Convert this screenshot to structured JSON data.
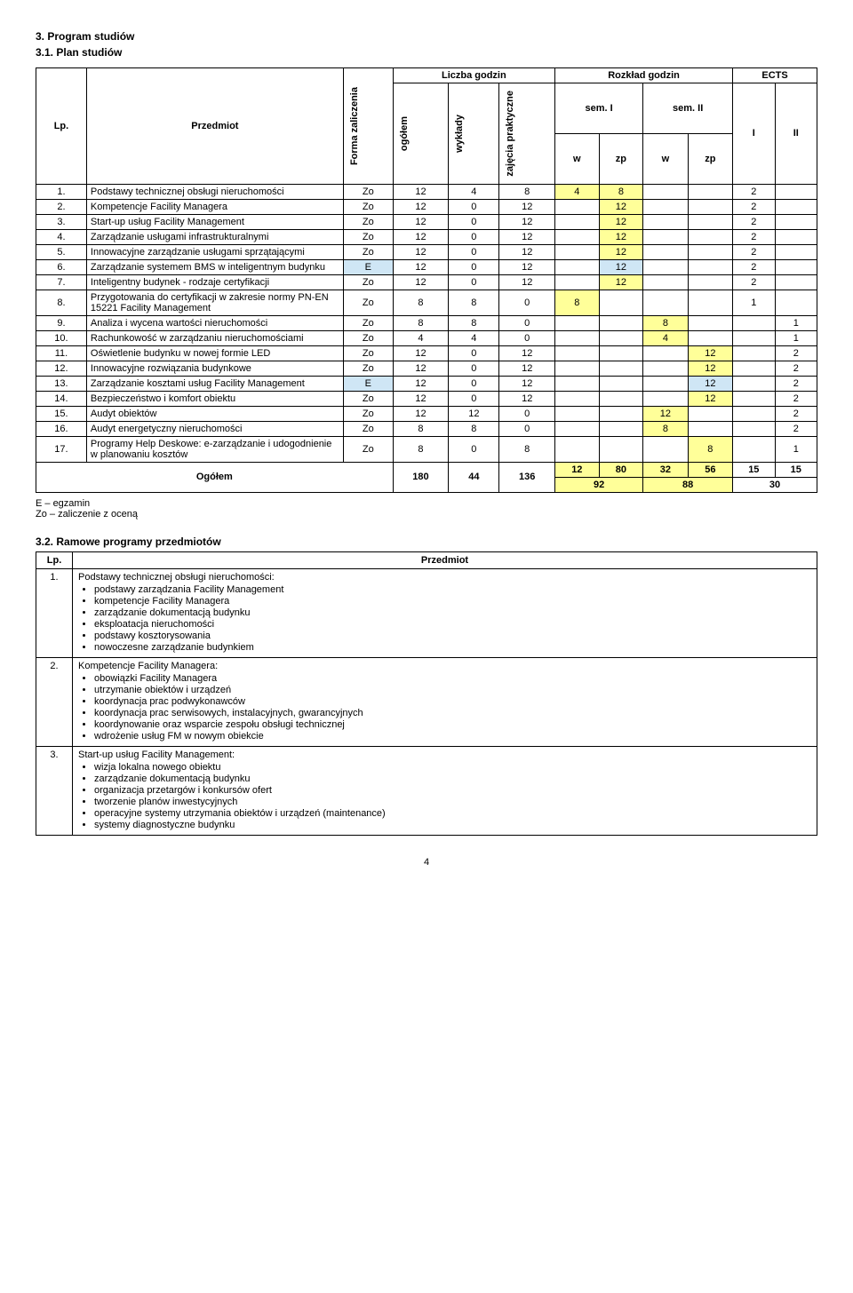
{
  "headings": {
    "sec": "3. Program studiów",
    "sub": "3.1. Plan studiów",
    "ramowe": "3.2. Ramowe programy przedmiotów"
  },
  "tableHeader": {
    "lp": "Lp.",
    "subject": "Przedmiot",
    "form": "Forma zaliczenia",
    "hours": "Liczba godzin",
    "schedule": "Rozkład godzin",
    "ects": "ECTS",
    "total": "ogółem",
    "lectures": "wykłady",
    "practical": "zajęcia praktyczne",
    "sem1": "sem. I",
    "sem2": "sem. II",
    "I": "I",
    "II": "II",
    "w": "w",
    "zp": "zp"
  },
  "rows": [
    {
      "n": "1.",
      "name": "Podstawy technicznej obsługi nieruchomości",
      "f": "Zo",
      "t": "12",
      "lec": "4",
      "pr": "8",
      "s1w": "4",
      "s1zp": "8",
      "s2w": "",
      "s2zp": "",
      "e1": "2",
      "e2": "",
      "hl": "yellow"
    },
    {
      "n": "2.",
      "name": "Kompetencje Facility Managera",
      "f": "Zo",
      "t": "12",
      "lec": "0",
      "pr": "12",
      "s1w": "",
      "s1zp": "12",
      "s2w": "",
      "s2zp": "",
      "e1": "2",
      "e2": "",
      "hl": "yellow"
    },
    {
      "n": "3.",
      "name": "Start-up usług Facility Management",
      "f": "Zo",
      "t": "12",
      "lec": "0",
      "pr": "12",
      "s1w": "",
      "s1zp": "12",
      "s2w": "",
      "s2zp": "",
      "e1": "2",
      "e2": "",
      "hl": "yellow"
    },
    {
      "n": "4.",
      "name": "Zarządzanie usługami infrastrukturalnymi",
      "f": "Zo",
      "t": "12",
      "lec": "0",
      "pr": "12",
      "s1w": "",
      "s1zp": "12",
      "s2w": "",
      "s2zp": "",
      "e1": "2",
      "e2": "",
      "hl": "yellow"
    },
    {
      "n": "5.",
      "name": "Innowacyjne zarządzanie usługami sprzątającymi",
      "f": "Zo",
      "t": "12",
      "lec": "0",
      "pr": "12",
      "s1w": "",
      "s1zp": "12",
      "s2w": "",
      "s2zp": "",
      "e1": "2",
      "e2": "",
      "hl": "yellow"
    },
    {
      "n": "6.",
      "name": "Zarządzanie systemem BMS w inteligentnym budynku",
      "f": "E",
      "t": "12",
      "lec": "0",
      "pr": "12",
      "s1w": "",
      "s1zp": "12",
      "s2w": "",
      "s2zp": "",
      "e1": "2",
      "e2": "",
      "hl": "blue"
    },
    {
      "n": "7.",
      "name": "Inteligentny budynek - rodzaje certyfikacji",
      "f": "Zo",
      "t": "12",
      "lec": "0",
      "pr": "12",
      "s1w": "",
      "s1zp": "12",
      "s2w": "",
      "s2zp": "",
      "e1": "2",
      "e2": "",
      "hl": "yellow"
    },
    {
      "n": "8.",
      "name": "Przygotowania do certyfikacji w zakresie normy PN-EN 15221 Facility Management",
      "f": "Zo",
      "t": "8",
      "lec": "8",
      "pr": "0",
      "s1w": "8",
      "s1zp": "",
      "s2w": "",
      "s2zp": "",
      "e1": "1",
      "e2": "",
      "hl": "yellow"
    },
    {
      "n": "9.",
      "name": "Analiza i wycena wartości nieruchomości",
      "f": "Zo",
      "t": "8",
      "lec": "8",
      "pr": "0",
      "s1w": "",
      "s1zp": "",
      "s2w": "8",
      "s2zp": "",
      "e1": "",
      "e2": "1",
      "hl": "yellow"
    },
    {
      "n": "10.",
      "name": "Rachunkowość w zarządzaniu nieruchomościami",
      "f": "Zo",
      "t": "4",
      "lec": "4",
      "pr": "0",
      "s1w": "",
      "s1zp": "",
      "s2w": "4",
      "s2zp": "",
      "e1": "",
      "e2": "1",
      "hl": "yellow"
    },
    {
      "n": "11.",
      "name": "Oświetlenie budynku w nowej formie LED",
      "f": "Zo",
      "t": "12",
      "lec": "0",
      "pr": "12",
      "s1w": "",
      "s1zp": "",
      "s2w": "",
      "s2zp": "12",
      "e1": "",
      "e2": "2",
      "hl": "yellow"
    },
    {
      "n": "12.",
      "name": "Innowacyjne rozwiązania budynkowe",
      "f": "Zo",
      "t": "12",
      "lec": "0",
      "pr": "12",
      "s1w": "",
      "s1zp": "",
      "s2w": "",
      "s2zp": "12",
      "e1": "",
      "e2": "2",
      "hl": "yellow"
    },
    {
      "n": "13.",
      "name": "Zarządzanie kosztami usług Facility Management",
      "f": "E",
      "t": "12",
      "lec": "0",
      "pr": "12",
      "s1w": "",
      "s1zp": "",
      "s2w": "",
      "s2zp": "12",
      "e1": "",
      "e2": "2",
      "hl": "blue"
    },
    {
      "n": "14.",
      "name": "Bezpieczeństwo i komfort obiektu",
      "f": "Zo",
      "t": "12",
      "lec": "0",
      "pr": "12",
      "s1w": "",
      "s1zp": "",
      "s2w": "",
      "s2zp": "12",
      "e1": "",
      "e2": "2",
      "hl": "yellow"
    },
    {
      "n": "15.",
      "name": "Audyt obiektów",
      "f": "Zo",
      "t": "12",
      "lec": "12",
      "pr": "0",
      "s1w": "",
      "s1zp": "",
      "s2w": "12",
      "s2zp": "",
      "e1": "",
      "e2": "2",
      "hl": "yellow"
    },
    {
      "n": "16.",
      "name": "Audyt energetyczny nieruchomości",
      "f": "Zo",
      "t": "8",
      "lec": "8",
      "pr": "0",
      "s1w": "",
      "s1zp": "",
      "s2w": "8",
      "s2zp": "",
      "e1": "",
      "e2": "2",
      "hl": "yellow"
    },
    {
      "n": "17.",
      "name": "Programy Help Deskowe: e-zarządzanie i udogodnienie w planowaniu kosztów",
      "f": "Zo",
      "t": "8",
      "lec": "0",
      "pr": "8",
      "s1w": "",
      "s1zp": "",
      "s2w": "",
      "s2zp": "8",
      "e1": "",
      "e2": "1",
      "hl": "yellow"
    }
  ],
  "totals": {
    "label": "Ogółem",
    "t": "180",
    "lec": "44",
    "pr": "136",
    "s1w": "12",
    "s1zp": "80",
    "s2w": "32",
    "s2zp": "56",
    "e1": "15",
    "e2": "15",
    "sem1sum": "92",
    "sem2sum": "88",
    "ectsSum": "30"
  },
  "legend": {
    "E": "E – egzamin",
    "Zo": "Zo – zaliczenie z oceną"
  },
  "courseList": {
    "lp": "Lp.",
    "subject": "Przedmiot",
    "items": [
      {
        "n": "1.",
        "title": "Podstawy technicznej obsługi nieruchomości:",
        "bullets": [
          "podstawy zarządzania Facility Management",
          "kompetencje Facility Managera",
          "zarządzanie dokumentacją budynku",
          "eksploatacja nieruchomości",
          "podstawy kosztorysowania",
          "nowoczesne zarządzanie budynkiem"
        ]
      },
      {
        "n": "2.",
        "title": "Kompetencje Facility Managera:",
        "bullets": [
          "obowiązki Facility Managera",
          "utrzymanie obiektów i urządzeń",
          "koordynacja prac podwykonawców",
          "koordynacja prac serwisowych, instalacyjnych, gwarancyjnych",
          "koordynowanie oraz wsparcie zespołu obsługi technicznej",
          "wdrożenie usług FM w nowym obiekcie"
        ]
      },
      {
        "n": "3.",
        "title": "Start-up usług Facility Management:",
        "bullets": [
          "wizja lokalna nowego obiektu",
          "zarządzanie dokumentacją budynku",
          "organizacja przetargów i konkursów ofert",
          "tworzenie planów inwestycyjnych",
          "operacyjne systemy utrzymania obiektów i urządzeń (maintenance)",
          "systemy diagnostyczne budynku"
        ]
      }
    ]
  },
  "pageNumber": "4",
  "colors": {
    "paleBlue": "#cfe6f5",
    "paleYellow": "#ffff99",
    "border": "#000000",
    "text": "#000000",
    "bg": "#ffffff"
  }
}
